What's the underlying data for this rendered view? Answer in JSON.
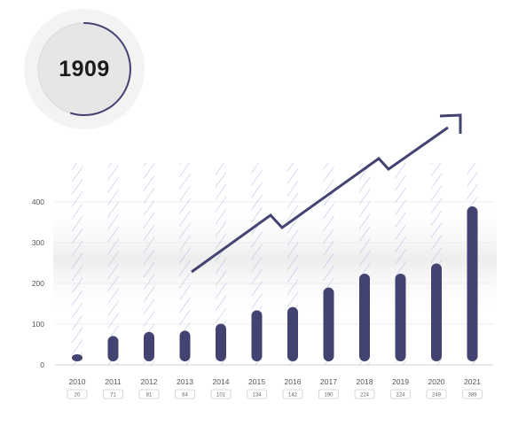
{
  "badge": {
    "value": "1909"
  },
  "chart_data": {
    "type": "bar",
    "categories": [
      "2010",
      "2011",
      "2012",
      "2013",
      "2014",
      "2015",
      "2016",
      "2017",
      "2018",
      "2019",
      "2020",
      "2021"
    ],
    "values": [
      20,
      71,
      81,
      84,
      101,
      134,
      142,
      190,
      224,
      224,
      249,
      389
    ],
    "yticks": [
      0,
      100,
      200,
      300,
      400
    ],
    "ylim": [
      0,
      400
    ],
    "grid": true,
    "trend_arrow": true,
    "colors": {
      "bar": "#434371",
      "hatch": "#b3bee3",
      "tick_text": "#555555"
    }
  }
}
